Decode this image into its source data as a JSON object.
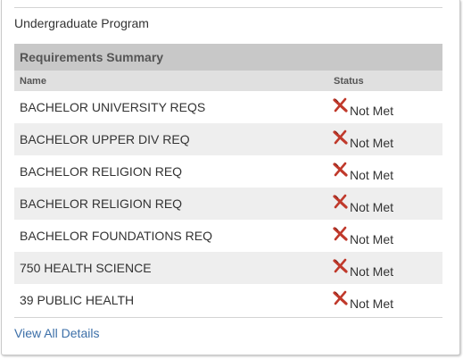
{
  "program": {
    "title": "Undergraduate Program"
  },
  "summary": {
    "title": "Requirements Summary",
    "columns": {
      "name": "Name",
      "status": "Status"
    },
    "rows": [
      {
        "name": "BACHELOR UNIVERSITY REQS",
        "status": "Not Met"
      },
      {
        "name": "BACHELOR UPPER DIV REQ",
        "status": "Not Met"
      },
      {
        "name": "BACHELOR RELIGION REQ",
        "status": "Not Met"
      },
      {
        "name": "BACHELOR RELIGION REQ",
        "status": "Not Met"
      },
      {
        "name": "BACHELOR FOUNDATIONS REQ",
        "status": "Not Met"
      },
      {
        "name": "750 HEALTH SCIENCE",
        "status": "Not Met"
      },
      {
        "name": "39 PUBLIC HEALTH",
        "status": "Not Met"
      }
    ],
    "status_icon": "red-x-icon",
    "status_icon_color": "#c0392b"
  },
  "footer": {
    "link_label": "View All Details",
    "link_color": "#3c6fa8"
  }
}
